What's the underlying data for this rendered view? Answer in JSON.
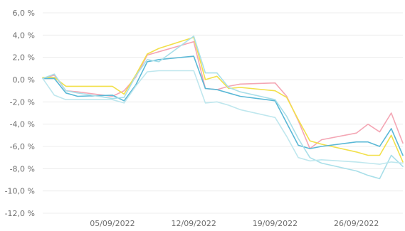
{
  "chart_data": {
    "type": "line",
    "title": "",
    "xlabel": "",
    "ylabel": "",
    "ylim": [
      -12.0,
      6.0
    ],
    "y_ticks": [
      6.0,
      4.0,
      2.0,
      0.0,
      -2.0,
      -4.0,
      -6.0,
      -8.0,
      -10.0,
      -12.0
    ],
    "y_tick_labels": [
      "6,0 %",
      "4,0 %",
      "2,0 %",
      "0,0 %",
      "-2,0 %",
      "-4,0 %",
      "-6,0 %",
      "-8,0 %",
      "-10,0 %",
      "-12,0 %"
    ],
    "x_range": [
      "2022-08-30",
      "2022-09-30"
    ],
    "x_ticks": [
      "2022-09-05",
      "2022-09-12",
      "2022-09-19",
      "2022-09-26"
    ],
    "x_tick_labels": [
      "05/09/2022",
      "12/09/2022",
      "19/09/2022",
      "26/09/2022"
    ],
    "grid": "horizontal",
    "legend": "none",
    "x": [
      "2022-08-30",
      "2022-08-31",
      "2022-09-01",
      "2022-09-02",
      "2022-09-05",
      "2022-09-06",
      "2022-09-07",
      "2022-09-08",
      "2022-09-09",
      "2022-09-12",
      "2022-09-13",
      "2022-09-14",
      "2022-09-15",
      "2022-09-16",
      "2022-09-19",
      "2022-09-20",
      "2022-09-21",
      "2022-09-22",
      "2022-09-23",
      "2022-09-26",
      "2022-09-27",
      "2022-09-28",
      "2022-09-29",
      "2022-09-30"
    ],
    "series": [
      {
        "color": "#f4a6b4",
        "values": [
          0.1,
          0.4,
          -1.0,
          -1.1,
          -1.5,
          -1.0,
          0.2,
          2.2,
          2.5,
          3.4,
          -0.8,
          -0.9,
          -0.6,
          -0.4,
          -0.3,
          -1.5,
          -3.7,
          -6.2,
          -5.4,
          -4.8,
          -4.0,
          -4.7,
          -3.0,
          -5.7
        ]
      },
      {
        "color": "#f2e04a",
        "values": [
          0.2,
          0.2,
          -0.6,
          -0.6,
          -0.6,
          -1.3,
          0.4,
          2.3,
          2.8,
          3.8,
          0.0,
          0.3,
          -0.8,
          -0.7,
          -1.0,
          -1.6,
          -3.6,
          -5.5,
          -5.8,
          -6.5,
          -6.8,
          -6.8,
          -5.0,
          -7.4
        ]
      },
      {
        "color": "#5ab8d6",
        "values": [
          0.1,
          0.1,
          -1.2,
          -1.5,
          -1.4,
          -1.9,
          -0.5,
          1.6,
          1.8,
          2.1,
          -0.8,
          -0.9,
          -1.2,
          -1.5,
          -1.9,
          -3.9,
          -5.9,
          -6.2,
          -6.0,
          -5.6,
          -5.6,
          -6.0,
          -4.4,
          -6.8
        ]
      },
      {
        "color": "#a9dfe9",
        "values": [
          0.1,
          0.5,
          -1.0,
          -1.2,
          -1.7,
          -1.6,
          0.3,
          1.8,
          1.6,
          3.9,
          0.6,
          0.6,
          -0.7,
          -1.1,
          -1.8,
          -3.3,
          -5.3,
          -7.0,
          -7.5,
          -8.2,
          -8.6,
          -8.9,
          -6.8,
          -7.8
        ]
      },
      {
        "color": "#bfe7ee",
        "values": [
          0.1,
          -1.4,
          -1.8,
          -1.8,
          -1.8,
          -2.1,
          -0.6,
          0.7,
          0.8,
          0.8,
          -2.1,
          -2.0,
          -2.3,
          -2.7,
          -3.4,
          -5.1,
          -7.0,
          -7.3,
          -7.2,
          -7.4,
          -7.5,
          -7.6,
          -7.4,
          -7.5
        ]
      }
    ]
  }
}
